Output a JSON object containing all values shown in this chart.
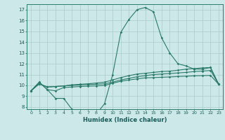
{
  "xlabel": "Humidex (Indice chaleur)",
  "bg_color": "#cce8e8",
  "grid_color": "#aacccc",
  "line_color": "#2a7a6a",
  "xlim": [
    -0.5,
    23.5
  ],
  "ylim": [
    7.8,
    17.5
  ],
  "xticks": [
    0,
    1,
    2,
    3,
    4,
    5,
    6,
    7,
    8,
    9,
    10,
    11,
    12,
    13,
    14,
    15,
    16,
    17,
    18,
    19,
    20,
    21,
    22,
    23
  ],
  "yticks": [
    8,
    9,
    10,
    11,
    12,
    13,
    14,
    15,
    16,
    17
  ],
  "line1_x": [
    0,
    1,
    2,
    3,
    4,
    5,
    6,
    7,
    8,
    9,
    10,
    11,
    12,
    13,
    14,
    15,
    16,
    17,
    18,
    19,
    20,
    21,
    22,
    23
  ],
  "line1_y": [
    9.5,
    10.3,
    9.6,
    8.8,
    8.8,
    7.8,
    7.6,
    7.55,
    7.35,
    8.3,
    11.0,
    14.9,
    16.1,
    17.0,
    17.2,
    16.8,
    14.4,
    13.0,
    12.0,
    11.8,
    11.5,
    11.5,
    11.65,
    10.1
  ],
  "line2_x": [
    0,
    1,
    2,
    3,
    4,
    5,
    6,
    7,
    8,
    9,
    10,
    11,
    12,
    13,
    14,
    15,
    16,
    17,
    18,
    19,
    20,
    21,
    22,
    23
  ],
  "line2_y": [
    9.5,
    10.3,
    9.6,
    9.5,
    9.8,
    9.85,
    9.9,
    9.93,
    9.95,
    10.0,
    10.2,
    10.38,
    10.5,
    10.6,
    10.7,
    10.72,
    10.75,
    10.78,
    10.82,
    10.85,
    10.88,
    10.9,
    10.92,
    10.1
  ],
  "line3_x": [
    0,
    1,
    2,
    3,
    4,
    5,
    6,
    7,
    8,
    9,
    10,
    11,
    12,
    13,
    14,
    15,
    16,
    17,
    18,
    19,
    20,
    21,
    22,
    23
  ],
  "line3_y": [
    9.5,
    10.15,
    9.85,
    9.9,
    9.95,
    10.0,
    10.05,
    10.08,
    10.1,
    10.15,
    10.3,
    10.5,
    10.65,
    10.8,
    10.9,
    11.0,
    11.05,
    11.1,
    11.15,
    11.2,
    11.28,
    11.32,
    11.38,
    10.1
  ],
  "line4_x": [
    0,
    1,
    2,
    3,
    4,
    5,
    6,
    7,
    8,
    9,
    10,
    11,
    12,
    13,
    14,
    15,
    16,
    17,
    18,
    19,
    20,
    21,
    22,
    23
  ],
  "line4_y": [
    9.5,
    10.15,
    9.85,
    9.9,
    9.95,
    10.05,
    10.1,
    10.15,
    10.22,
    10.3,
    10.5,
    10.72,
    10.9,
    11.05,
    11.12,
    11.2,
    11.28,
    11.32,
    11.4,
    11.5,
    11.55,
    11.62,
    11.65,
    10.1
  ]
}
